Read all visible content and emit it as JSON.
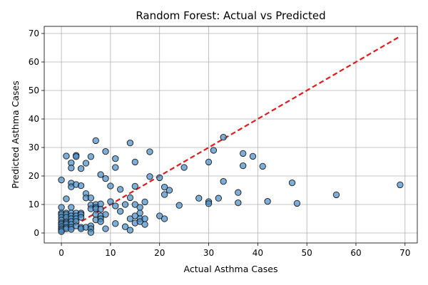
{
  "chart_data": {
    "type": "scatter",
    "title": "Random Forest: Actual vs Predicted",
    "xlabel": "Actual Asthma Cases",
    "ylabel": "Predicted Asthma Cases",
    "xlim": [
      -3.5,
      72.5
    ],
    "ylim": [
      -3.5,
      72.5
    ],
    "x_ticks": [
      0,
      10,
      20,
      30,
      40,
      50,
      60,
      70
    ],
    "y_ticks": [
      0,
      10,
      20,
      30,
      40,
      50,
      60,
      70
    ],
    "grid": true,
    "reference_line": {
      "x": [
        0,
        69
      ],
      "y": [
        0,
        69
      ],
      "style": "dashed",
      "color": "#e41a1c"
    },
    "colors": {
      "point_fill": "#4a8fc7",
      "point_edge": "#1a1a1a",
      "reference": "#e41a1c"
    },
    "points": [
      [
        0,
        18.6
      ],
      [
        0,
        9.0
      ],
      [
        0,
        7.0
      ],
      [
        0,
        6.5
      ],
      [
        0,
        5.5
      ],
      [
        0,
        4.5
      ],
      [
        0,
        3.5
      ],
      [
        0,
        3.0
      ],
      [
        0,
        2.2
      ],
      [
        0,
        1.5
      ],
      [
        0,
        1.0
      ],
      [
        0,
        0.5
      ],
      [
        1,
        27.0
      ],
      [
        1,
        12.0
      ],
      [
        1,
        7.0
      ],
      [
        1,
        6.5
      ],
      [
        1,
        5.5
      ],
      [
        1,
        4.0
      ],
      [
        1,
        3.5
      ],
      [
        1,
        3.0
      ],
      [
        1,
        2.0
      ],
      [
        1,
        1.5
      ],
      [
        2,
        24.6
      ],
      [
        2,
        22.8
      ],
      [
        2,
        17.5
      ],
      [
        2,
        16.2
      ],
      [
        2,
        9.0
      ],
      [
        2,
        7.0
      ],
      [
        2,
        6.0
      ],
      [
        2,
        5.0
      ],
      [
        2,
        4.0
      ],
      [
        2,
        3.0
      ],
      [
        2,
        2.0
      ],
      [
        2,
        1.3
      ],
      [
        3,
        27.2
      ],
      [
        3,
        26.8
      ],
      [
        3,
        17.0
      ],
      [
        3,
        7.0
      ],
      [
        3,
        6.0
      ],
      [
        3,
        5.0
      ],
      [
        3,
        4.0
      ],
      [
        3,
        2.5
      ],
      [
        4,
        22.6
      ],
      [
        4,
        16.6
      ],
      [
        4,
        7.0
      ],
      [
        4,
        6.5
      ],
      [
        4,
        5.5
      ],
      [
        4,
        2.0
      ],
      [
        4,
        1.5
      ],
      [
        5,
        24.5
      ],
      [
        5,
        13.8
      ],
      [
        5,
        12.3
      ],
      [
        5,
        2.0
      ],
      [
        6,
        26.8
      ],
      [
        6,
        12.3
      ],
      [
        6,
        9.8
      ],
      [
        6,
        8.5
      ],
      [
        6,
        2.5
      ],
      [
        6,
        1.5
      ],
      [
        6,
        0.2
      ],
      [
        7,
        32.4
      ],
      [
        7,
        10.0
      ],
      [
        7,
        9.0
      ],
      [
        7,
        8.5
      ],
      [
        7,
        6.5
      ],
      [
        7,
        4.6
      ],
      [
        8,
        20.5
      ],
      [
        8,
        10.2
      ],
      [
        8,
        8.3
      ],
      [
        8,
        6.0
      ],
      [
        8,
        5.0
      ],
      [
        8,
        4.0
      ],
      [
        9,
        28.6
      ],
      [
        9,
        19.1
      ],
      [
        9,
        6.5
      ],
      [
        9,
        1.5
      ],
      [
        10,
        16.5
      ],
      [
        10,
        11.0
      ],
      [
        11,
        26.1
      ],
      [
        11,
        23.0
      ],
      [
        11,
        9.5
      ],
      [
        11,
        3.3
      ],
      [
        12,
        15.3
      ],
      [
        12,
        7.6
      ],
      [
        13,
        10.0
      ],
      [
        13,
        2.2
      ],
      [
        14,
        31.6
      ],
      [
        14,
        12.4
      ],
      [
        14,
        5.0
      ],
      [
        14,
        1.0
      ],
      [
        15,
        24.9
      ],
      [
        15,
        16.4
      ],
      [
        15,
        10.0
      ],
      [
        15,
        6.0
      ],
      [
        15,
        3.5
      ],
      [
        16,
        9.0
      ],
      [
        16,
        7.0
      ],
      [
        16,
        5.0
      ],
      [
        16,
        4.0
      ],
      [
        17,
        10.9
      ],
      [
        17,
        5.0
      ],
      [
        17,
        3.0
      ],
      [
        18,
        28.5
      ],
      [
        18,
        19.8
      ],
      [
        20,
        19.4
      ],
      [
        20,
        6.0
      ],
      [
        21,
        16.1
      ],
      [
        21,
        13.5
      ],
      [
        21,
        5.0
      ],
      [
        22,
        15.0
      ],
      [
        24,
        9.7
      ],
      [
        25,
        23.0
      ],
      [
        28,
        12.2
      ],
      [
        30,
        24.9
      ],
      [
        30,
        11.0
      ],
      [
        30,
        10.3
      ],
      [
        31,
        29.0
      ],
      [
        32,
        12.2
      ],
      [
        33,
        33.6
      ],
      [
        33,
        18.1
      ],
      [
        36,
        14.2
      ],
      [
        36,
        10.6
      ],
      [
        37,
        27.9
      ],
      [
        37,
        23.6
      ],
      [
        39,
        26.9
      ],
      [
        41,
        23.4
      ],
      [
        42,
        11.1
      ],
      [
        47,
        17.6
      ],
      [
        48,
        10.4
      ],
      [
        56,
        13.4
      ],
      [
        69,
        16.9
      ]
    ]
  }
}
